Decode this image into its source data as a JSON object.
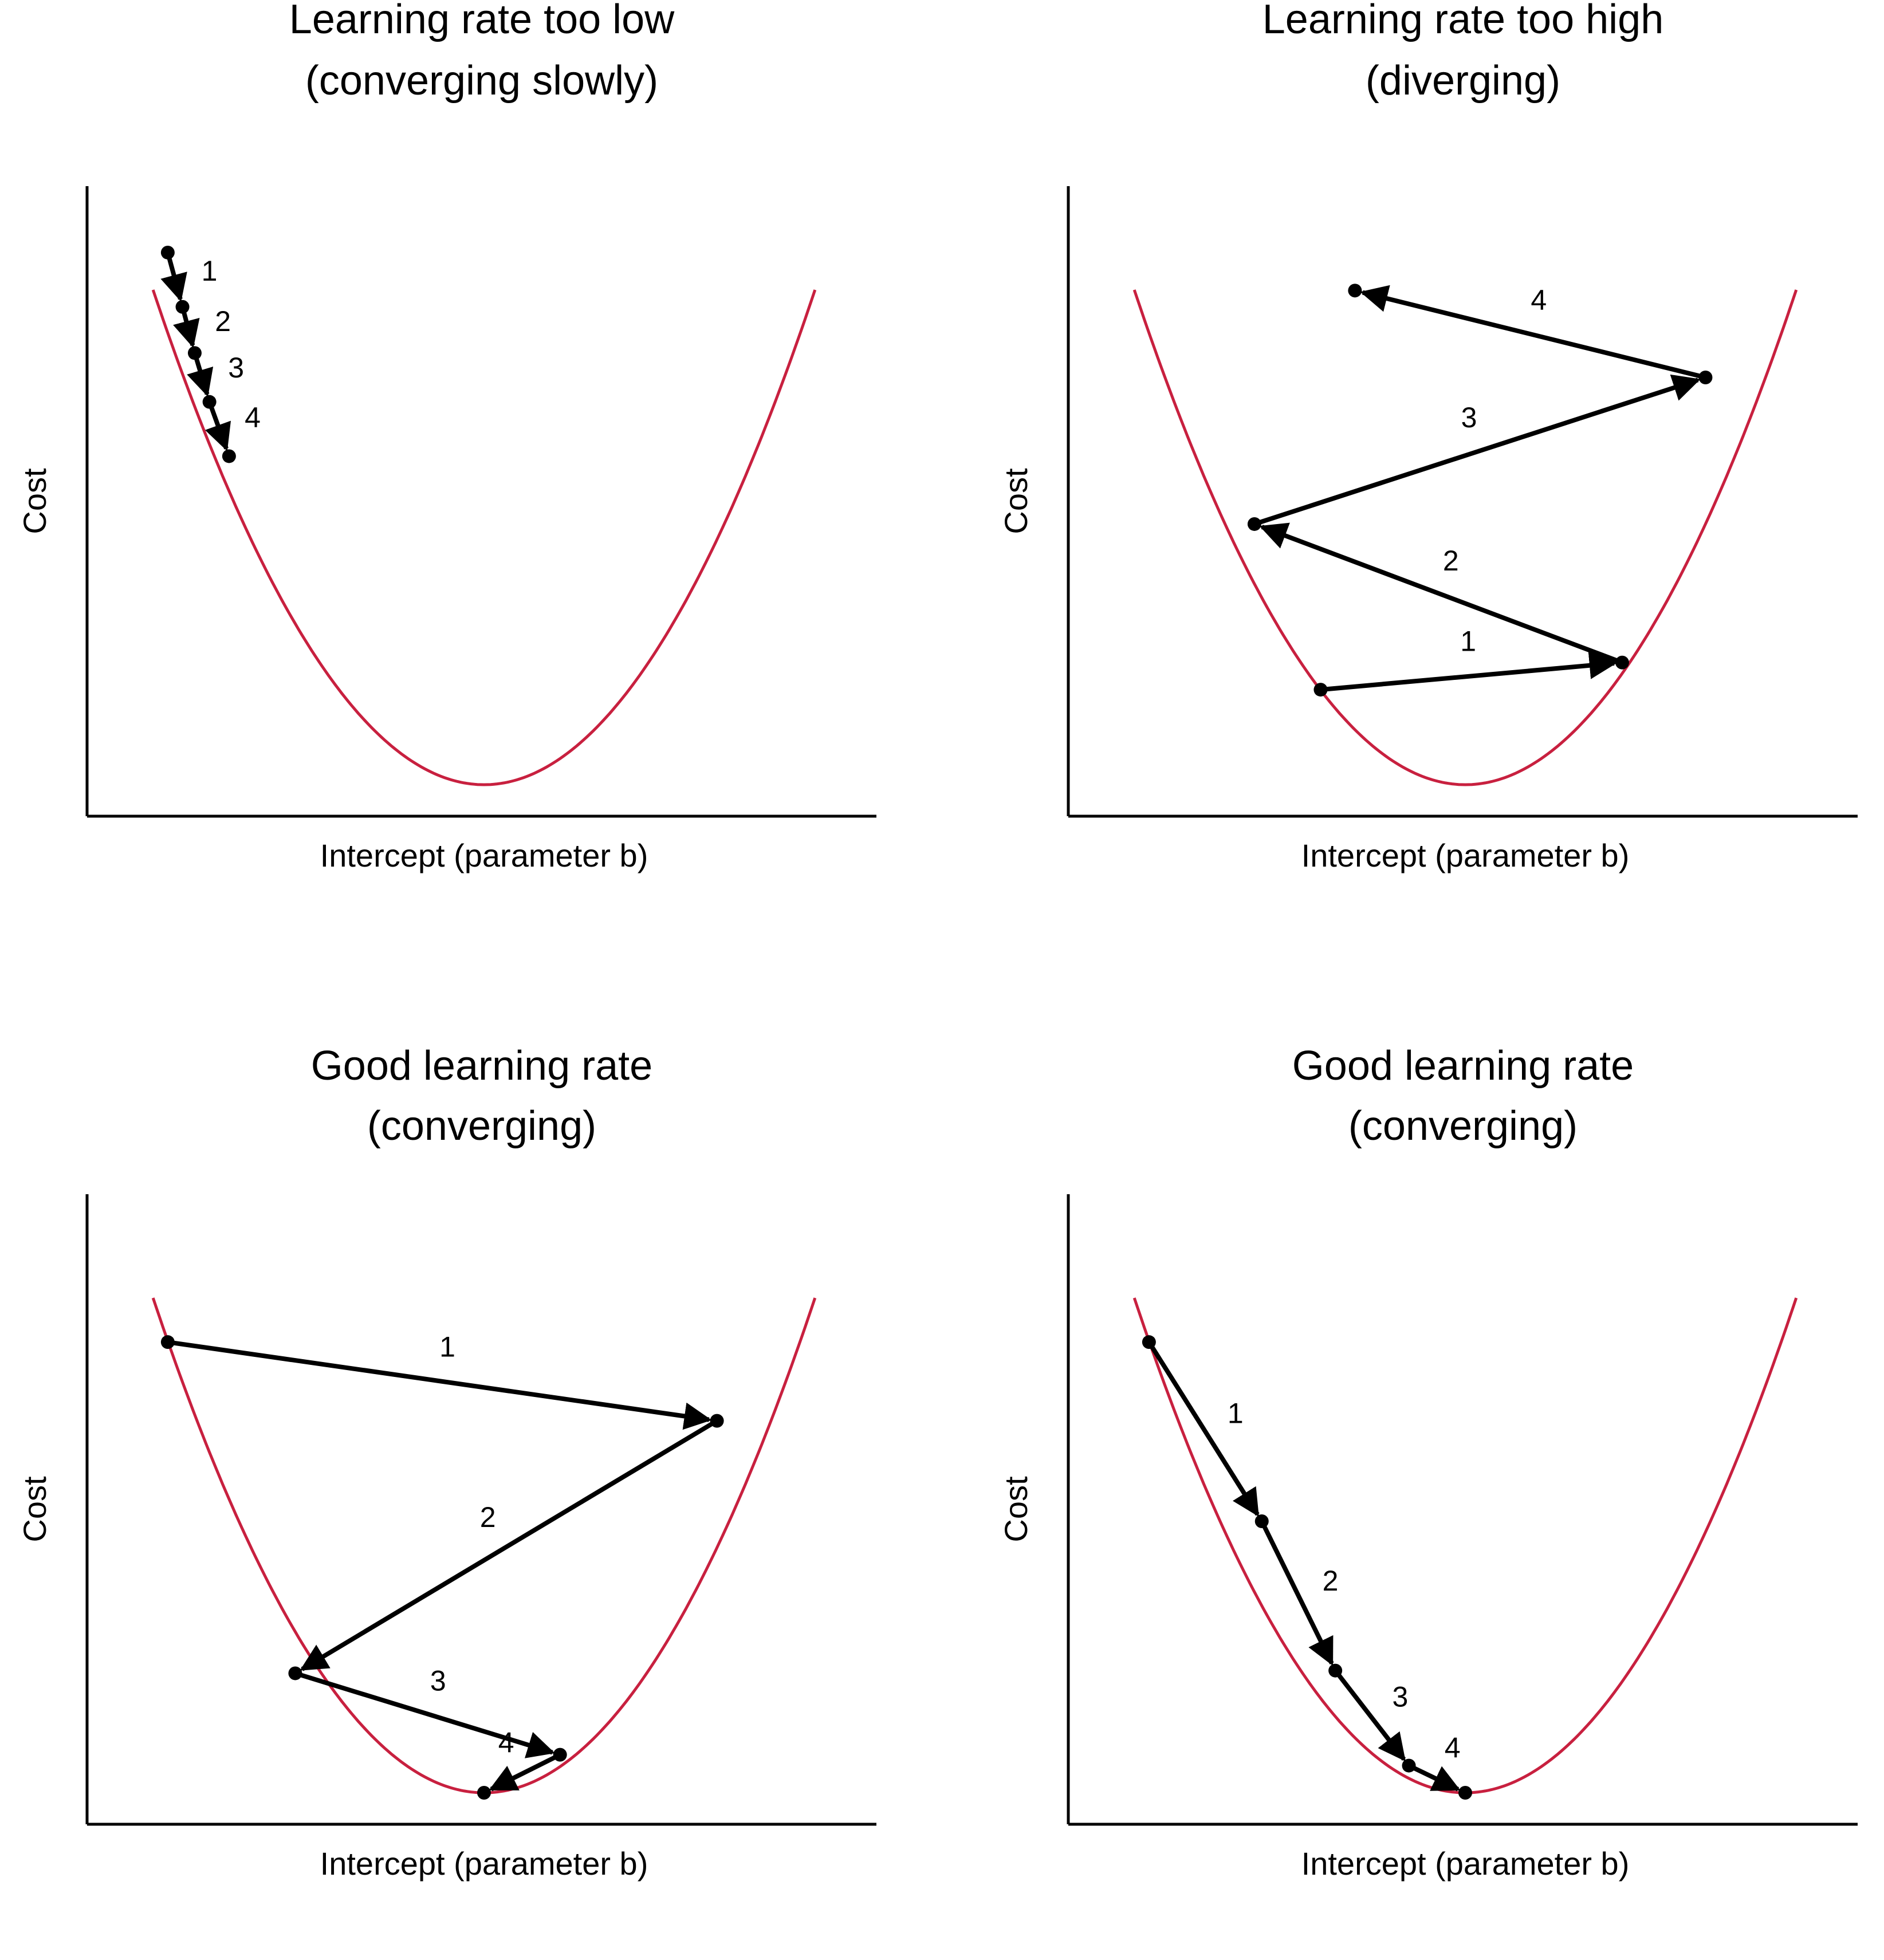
{
  "chart_data": [
    {
      "type": "line",
      "title": [
        "Learning rate too low",
        "(converging slowly)"
      ],
      "xlabel": "Intercept (parameter b)",
      "ylabel": "Cost",
      "curve_color": "#c8203f",
      "steps": [
        {
          "from": [
            -1.29,
            1.96
          ],
          "to": [
            -1.23,
            1.76
          ],
          "label": "1"
        },
        {
          "from": [
            -1.23,
            1.76
          ],
          "to": [
            -1.18,
            1.59
          ],
          "label": "2"
        },
        {
          "from": [
            -1.18,
            1.59
          ],
          "to": [
            -1.12,
            1.41
          ],
          "label": "3"
        },
        {
          "from": [
            -1.12,
            1.41
          ],
          "to": [
            -1.04,
            1.21
          ],
          "label": "4"
        }
      ]
    },
    {
      "type": "line",
      "title": [
        "Learning rate too high",
        "(diverging)"
      ],
      "xlabel": "Intercept (parameter b)",
      "ylabel": "Cost",
      "curve_color": "#c8203f",
      "steps": [
        {
          "from": [
            -0.59,
            0.35
          ],
          "to": [
            0.64,
            0.45
          ],
          "label": "1"
        },
        {
          "from": [
            0.64,
            0.45
          ],
          "to": [
            -0.86,
            0.96
          ],
          "label": "2"
        },
        {
          "from": [
            -0.86,
            0.96
          ],
          "to": [
            0.98,
            1.5
          ],
          "label": "3"
        },
        {
          "from": [
            0.98,
            1.5
          ],
          "to": [
            -0.45,
            1.82
          ],
          "label": "4"
        }
      ]
    },
    {
      "type": "line",
      "title": [
        "Good learning rate",
        "(converging)"
      ],
      "xlabel": "Intercept (parameter b)",
      "ylabel": "Cost",
      "curve_color": "#c8203f",
      "steps": [
        {
          "from": [
            -1.29,
            1.66
          ],
          "to": [
            0.95,
            1.37
          ],
          "label": "1"
        },
        {
          "from": [
            0.95,
            1.37
          ],
          "to": [
            -0.77,
            0.44
          ],
          "label": "2"
        },
        {
          "from": [
            -0.77,
            0.44
          ],
          "to": [
            0.31,
            0.14
          ],
          "label": "3"
        },
        {
          "from": [
            0.31,
            0.14
          ],
          "to": [
            0.0,
            0.0
          ],
          "label": "4"
        }
      ]
    },
    {
      "type": "line",
      "title": [
        "Good learning rate",
        "(converging)"
      ],
      "xlabel": "Intercept (parameter b)",
      "ylabel": "Cost",
      "curve_color": "#c8203f",
      "steps": [
        {
          "from": [
            -1.29,
            1.66
          ],
          "to": [
            -0.83,
            1.0
          ],
          "label": "1"
        },
        {
          "from": [
            -0.83,
            1.0
          ],
          "to": [
            -0.53,
            0.45
          ],
          "label": "2"
        },
        {
          "from": [
            -0.53,
            0.45
          ],
          "to": [
            -0.23,
            0.1
          ],
          "label": "3"
        },
        {
          "from": [
            -0.23,
            0.1
          ],
          "to": [
            0.0,
            0.0
          ],
          "label": "4"
        }
      ]
    }
  ]
}
